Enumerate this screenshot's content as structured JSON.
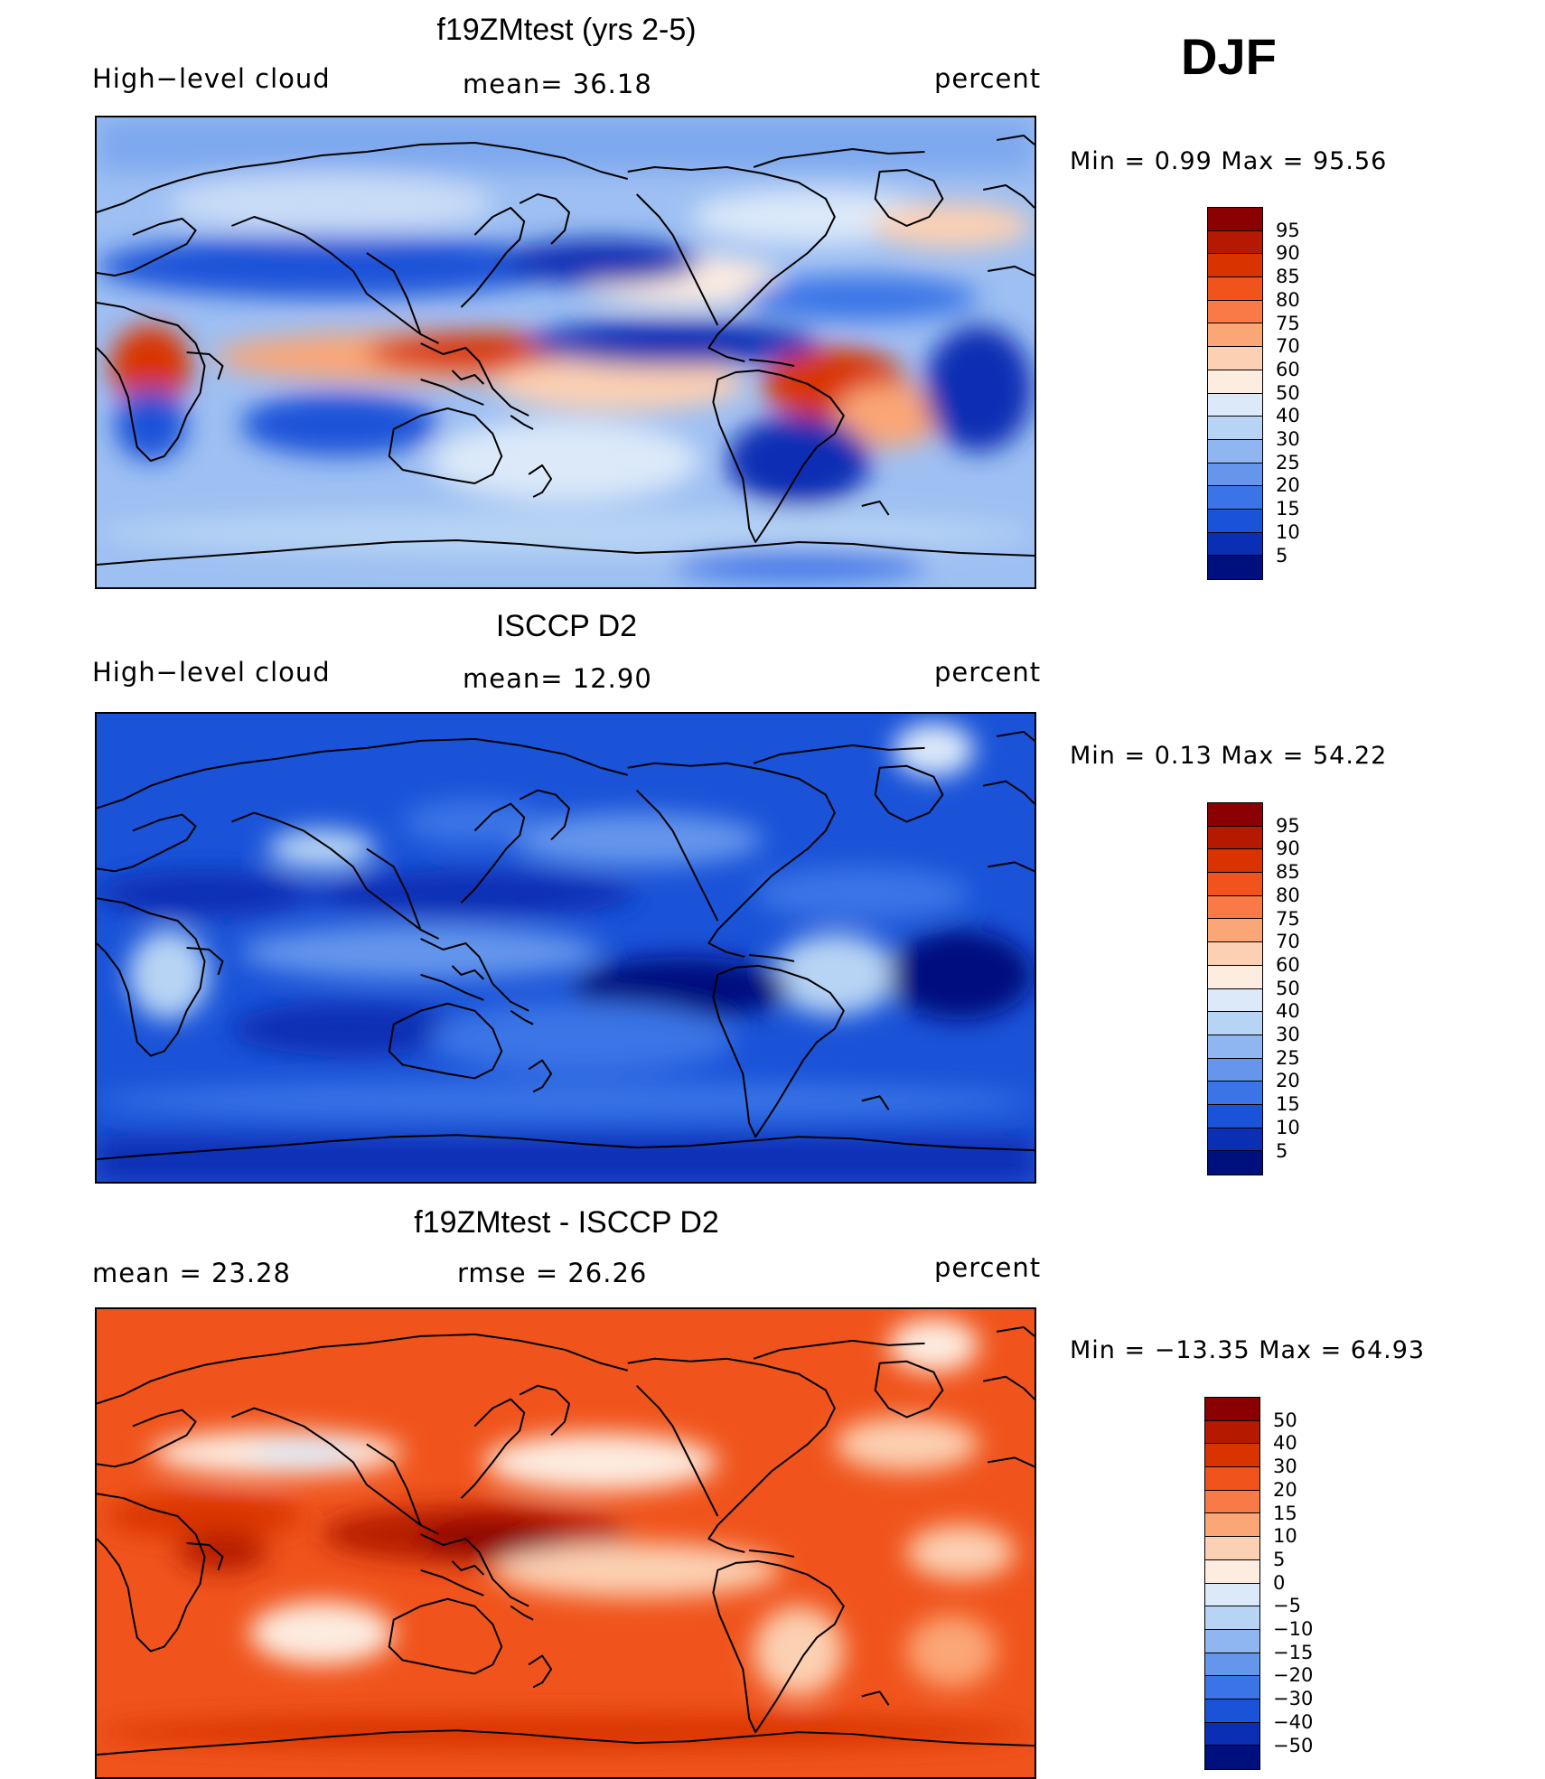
{
  "header": {
    "season": "DJF"
  },
  "panels": [
    {
      "title": "f19ZMtest (yrs 2-5)",
      "left_label": "High−level cloud",
      "center_label": "mean=   36.18",
      "units": "percent",
      "min_max": "Min  =     0.99  Max  =    95.56",
      "colorbar": {
        "labels": [
          "95",
          "90",
          "85",
          "80",
          "75",
          "70",
          "60",
          "50",
          "40",
          "30",
          "25",
          "20",
          "15",
          "10",
          "5"
        ],
        "colors": [
          "#8b0000",
          "#b51a00",
          "#d93400",
          "#f0541c",
          "#f97a46",
          "#fba676",
          "#fcd0b2",
          "#fdece0",
          "#dbe9f9",
          "#b7d4f4",
          "#8fb6f0",
          "#6596ec",
          "#3b74e6",
          "#1a53d8",
          "#0b2fb4",
          "#000f7e"
        ]
      }
    },
    {
      "title": "ISCCP D2",
      "left_label": "High−level cloud",
      "center_label": "mean=   12.90",
      "units": "percent",
      "min_max": "Min  =     0.13  Max  =    54.22",
      "colorbar": {
        "labels": [
          "95",
          "90",
          "85",
          "80",
          "75",
          "70",
          "60",
          "50",
          "40",
          "30",
          "25",
          "20",
          "15",
          "10",
          "5"
        ],
        "colors": [
          "#8b0000",
          "#b51a00",
          "#d93400",
          "#f0541c",
          "#f97a46",
          "#fba676",
          "#fcd0b2",
          "#fdece0",
          "#dbe9f9",
          "#b7d4f4",
          "#8fb6f0",
          "#6596ec",
          "#3b74e6",
          "#1a53d8",
          "#0b2fb4",
          "#000f7e"
        ]
      }
    },
    {
      "title": "f19ZMtest - ISCCP D2",
      "left_label": "mean  =    23.28",
      "center_label": "rmse  =    26.26",
      "units": "percent",
      "min_max": "Min  = −13.35  Max  =    64.93",
      "colorbar": {
        "labels": [
          "50",
          "40",
          "30",
          "20",
          "15",
          "10",
          "5",
          "0",
          "−5",
          "−10",
          "−15",
          "−20",
          "−30",
          "−40",
          "−50"
        ],
        "colors": [
          "#8b0000",
          "#b51a00",
          "#d93400",
          "#f0541c",
          "#f97a46",
          "#fba676",
          "#fcd0b2",
          "#fdece0",
          "#dbe9f9",
          "#b7d4f4",
          "#8fb6f0",
          "#6596ec",
          "#3b74e6",
          "#1a53d8",
          "#0b2fb4",
          "#000f7e"
        ]
      }
    }
  ]
}
